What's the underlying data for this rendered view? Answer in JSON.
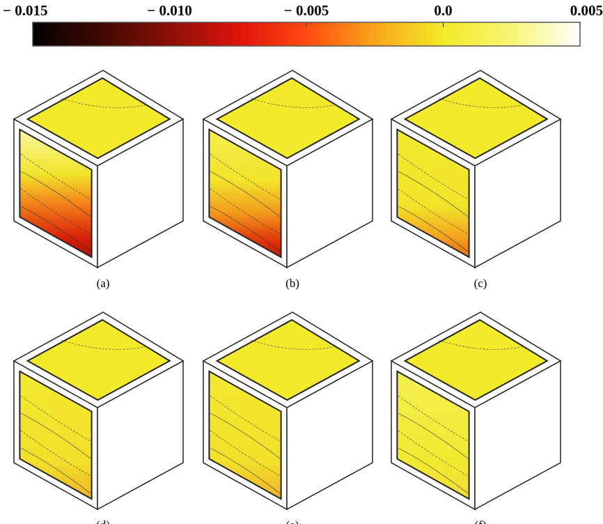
{
  "colorbar": {
    "ticks": [
      {
        "value": -0.015,
        "label": "− 0.015"
      },
      {
        "value": -0.01,
        "label": "− 0.010"
      },
      {
        "value": -0.005,
        "label": "− 0.005"
      },
      {
        "value": 0,
        "label": "0.0"
      },
      0.005
    ]
  },
  "panels": [
    {
      "label": "(a)"
    },
    {
      "label": "(b)"
    },
    {
      "label": "(c)"
    },
    {
      "label": "(d)"
    },
    {
      "label": "(e)"
    },
    {
      "label": "(f)"
    }
  ]
}
